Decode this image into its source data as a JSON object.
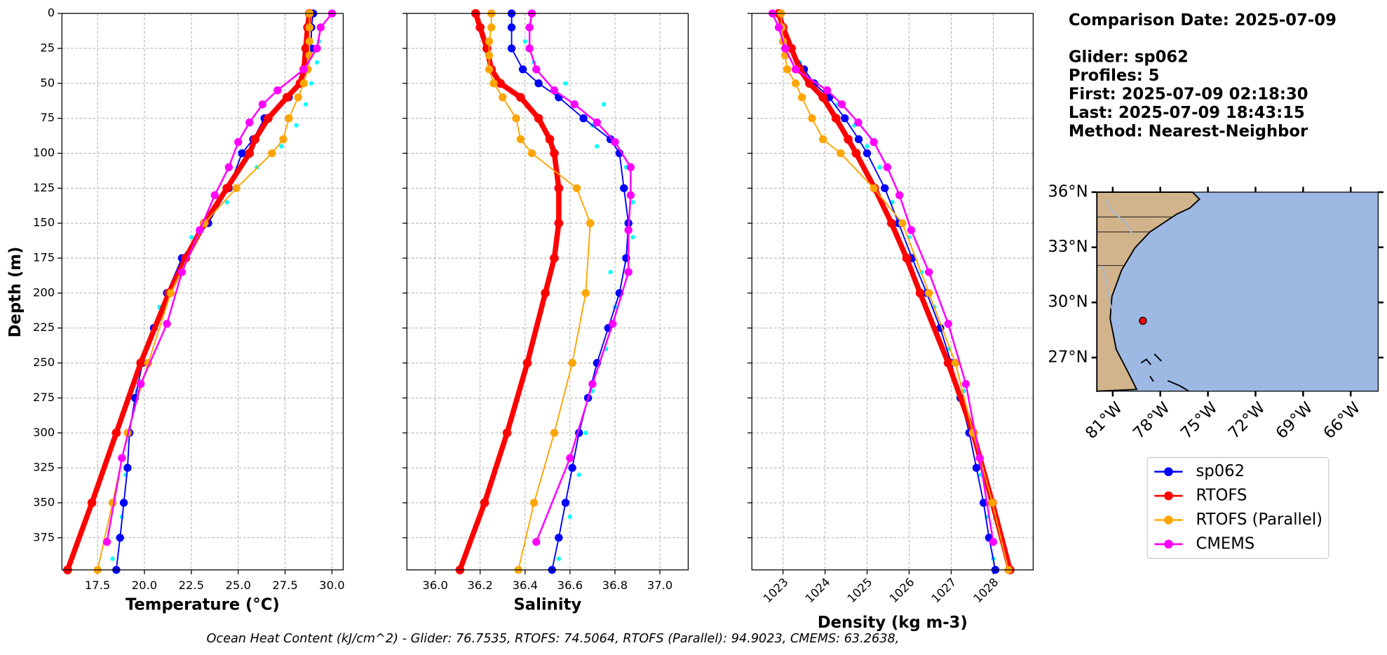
{
  "header": [
    "Comparison Date: 2025-07-09",
    "Glider: sp062",
    "Profiles: 5",
    "First: 2025-07-09 02:18:30",
    "Last: 2025-07-09 18:43:15",
    "Method: Nearest-Neighbor"
  ],
  "footer": "Ocean Heat Content (kJ/cm^2) - Glider: 76.7535,  RTOFS: 74.5064,  RTOFS (Parallel): 94.9023,  CMEMS: 63.2638,",
  "legend": [
    {
      "name": "sp062",
      "color": "#0000ff"
    },
    {
      "name": "RTOFS",
      "color": "#ff0000"
    },
    {
      "name": "RTOFS (Parallel)",
      "color": "#ffa500"
    },
    {
      "name": "CMEMS",
      "color": "#ff00ff"
    }
  ],
  "chart_data": [
    {
      "type": "line",
      "xlabel": "Temperature (°C)",
      "ylabel": "Depth (m)",
      "grid": true,
      "xlim": [
        15.6,
        30.6
      ],
      "ylim": [
        398,
        0
      ],
      "xticks": [
        17.5,
        {
          "value": 20,
          "label": "20.0"
        },
        22.5,
        {
          "value": 25,
          "label": "25.0"
        },
        27.5,
        {
          "value": 30,
          "label": "30.0"
        }
      ],
      "yticks": [
        0,
        25,
        50,
        75,
        100,
        125,
        150,
        175,
        200,
        225,
        250,
        275,
        300,
        325,
        350,
        375
      ],
      "series": [
        {
          "color": "#00ffff",
          "linewidth": 0,
          "y": [
            20,
            35,
            50,
            65,
            80,
            95,
            110,
            135,
            160,
            185,
            210,
            240,
            270,
            300,
            330,
            360,
            390
          ],
          "x": [
            29.3,
            29.2,
            28.9,
            28.6,
            28.1,
            27.3,
            26.0,
            24.4,
            22.5,
            21.8,
            20.8,
            20.1,
            19.6,
            19.3,
            19.0,
            18.8,
            18.3
          ]
        },
        {
          "color": "#0000ff",
          "linewidth": 1.5,
          "y": [
            0,
            10,
            25,
            40,
            50,
            60,
            75,
            90,
            100,
            125,
            150,
            175,
            200,
            225,
            250,
            275,
            300,
            325,
            350,
            375,
            398
          ],
          "x": [
            29.0,
            28.9,
            28.9,
            28.7,
            28.3,
            27.7,
            26.4,
            25.8,
            25.2,
            24.5,
            23.4,
            22.0,
            21.2,
            20.5,
            19.9,
            19.5,
            19.2,
            19.1,
            18.9,
            18.7,
            18.5
          ]
        },
        {
          "color": "#ff0000",
          "linewidth": 6,
          "y": [
            0,
            10,
            25,
            40,
            50,
            60,
            75,
            90,
            100,
            125,
            150,
            175,
            200,
            250,
            300,
            350,
            398
          ],
          "x": [
            28.8,
            28.7,
            28.6,
            28.5,
            28.3,
            27.6,
            26.6,
            25.9,
            25.6,
            24.4,
            23.2,
            22.2,
            21.3,
            19.8,
            18.5,
            17.2,
            15.9
          ]
        },
        {
          "color": "#ffa500",
          "linewidth": 1.5,
          "y": [
            0,
            10,
            20,
            30,
            40,
            50,
            60,
            75,
            90,
            100,
            125,
            150,
            200,
            250,
            300,
            350,
            398
          ],
          "x": [
            28.8,
            28.8,
            28.8,
            28.8,
            28.7,
            28.5,
            28.2,
            27.7,
            27.4,
            26.8,
            24.9,
            23.2,
            21.4,
            20.2,
            19.1,
            18.3,
            17.5
          ]
        },
        {
          "color": "#ff00ff",
          "linewidth": 2,
          "y": [
            0,
            10,
            25,
            40,
            55,
            65,
            78,
            92,
            110,
            130,
            155,
            185,
            222,
            265,
            318,
            378
          ],
          "x": [
            30.0,
            29.4,
            29.2,
            28.5,
            27.1,
            26.3,
            25.6,
            25.0,
            24.5,
            23.75,
            22.95,
            22.0,
            21.2,
            19.8,
            18.8,
            18.0
          ]
        }
      ]
    },
    {
      "type": "line",
      "xlabel": "Salinity",
      "grid": true,
      "xlim": [
        35.874,
        37.126
      ],
      "ylim": [
        398,
        0
      ],
      "xticks": [
        {
          "value": 36,
          "label": "36.0"
        },
        36.2,
        36.4,
        36.6,
        36.8,
        {
          "value": 37,
          "label": "37.0"
        }
      ],
      "yticks": [
        0,
        25,
        50,
        75,
        100,
        125,
        150,
        175,
        200,
        225,
        250,
        275,
        300,
        325,
        350,
        375
      ],
      "series": [
        {
          "color": "#00ffff",
          "linewidth": 0,
          "y": [
            20,
            35,
            50,
            65,
            80,
            95,
            110,
            135,
            160,
            185,
            210,
            240,
            270,
            300,
            330,
            360,
            390
          ],
          "x": [
            36.4,
            36.44,
            36.58,
            36.75,
            36.7,
            36.72,
            36.85,
            36.88,
            36.88,
            36.78,
            36.8,
            36.76,
            36.7,
            36.67,
            36.64,
            36.6,
            36.55
          ]
        },
        {
          "color": "#0000ff",
          "linewidth": 1.5,
          "y": [
            0,
            10,
            25,
            40,
            50,
            60,
            75,
            90,
            100,
            125,
            150,
            175,
            200,
            225,
            250,
            275,
            300,
            325,
            350,
            375,
            398
          ],
          "x": [
            36.34,
            36.34,
            36.34,
            36.39,
            36.46,
            36.55,
            36.66,
            36.78,
            36.82,
            36.84,
            36.86,
            36.85,
            36.82,
            36.77,
            36.72,
            36.68,
            36.64,
            36.61,
            36.58,
            36.55,
            36.52
          ]
        },
        {
          "color": "#ff0000",
          "linewidth": 6,
          "y": [
            0,
            10,
            25,
            40,
            50,
            60,
            75,
            90,
            100,
            125,
            150,
            175,
            200,
            250,
            300,
            350,
            398
          ],
          "x": [
            36.18,
            36.2,
            36.23,
            36.25,
            36.29,
            36.38,
            36.46,
            36.51,
            36.53,
            36.55,
            36.55,
            36.53,
            36.49,
            36.41,
            36.32,
            36.22,
            36.11
          ]
        },
        {
          "color": "#ffa500",
          "linewidth": 1.5,
          "y": [
            0,
            10,
            20,
            30,
            40,
            50,
            60,
            75,
            90,
            100,
            125,
            150,
            200,
            250,
            300,
            350,
            398
          ],
          "x": [
            36.25,
            36.25,
            36.24,
            36.24,
            36.24,
            36.26,
            36.3,
            36.36,
            36.38,
            36.43,
            36.63,
            36.69,
            36.67,
            36.61,
            36.53,
            36.44,
            36.37
          ]
        },
        {
          "color": "#ff00ff",
          "linewidth": 2,
          "y": [
            0,
            10,
            25,
            40,
            55,
            65,
            78,
            92,
            110,
            130,
            155,
            185,
            222,
            265,
            318,
            378
          ],
          "x": [
            36.43,
            36.42,
            36.42,
            36.45,
            36.53,
            36.62,
            36.72,
            36.8,
            36.87,
            36.87,
            36.86,
            36.86,
            36.79,
            36.7,
            36.6,
            36.45
          ]
        }
      ]
    },
    {
      "type": "line",
      "xlabel": "Density (kg m-3)",
      "grid": true,
      "xtick_rotation": 45,
      "xlim": [
        1022.26,
        1028.95
      ],
      "ylim": [
        398,
        0
      ],
      "xticks": [
        1023,
        1024,
        1025,
        1026,
        1027,
        1028
      ],
      "yticks": [
        0,
        25,
        50,
        75,
        100,
        125,
        150,
        175,
        200,
        225,
        250,
        275,
        300,
        325,
        350,
        375
      ],
      "series": [
        {
          "color": "#00ffff",
          "linewidth": 0,
          "y": [
            20,
            35,
            50,
            65,
            80,
            95,
            110,
            135,
            160,
            185,
            210,
            240,
            270,
            300,
            330,
            360,
            390
          ],
          "x": [
            1023.1,
            1023.4,
            1023.8,
            1024.3,
            1024.7,
            1025.0,
            1025.3,
            1025.6,
            1026.0,
            1026.3,
            1026.6,
            1026.95,
            1027.3,
            1027.5,
            1027.7,
            1027.85,
            1028.0
          ]
        },
        {
          "color": "#0000ff",
          "linewidth": 1.5,
          "y": [
            0,
            10,
            25,
            40,
            50,
            60,
            75,
            90,
            100,
            125,
            150,
            175,
            200,
            225,
            250,
            275,
            300,
            325,
            350,
            375,
            398
          ],
          "x": [
            1022.95,
            1023.0,
            1023.2,
            1023.5,
            1023.74,
            1024.1,
            1024.47,
            1024.8,
            1025.0,
            1025.42,
            1025.75,
            1026.07,
            1026.42,
            1026.74,
            1027.0,
            1027.22,
            1027.43,
            1027.6,
            1027.77,
            1027.9,
            1028.05
          ]
        },
        {
          "color": "#ff0000",
          "linewidth": 6,
          "y": [
            0,
            10,
            25,
            40,
            50,
            60,
            75,
            90,
            100,
            125,
            150,
            175,
            200,
            250,
            300,
            350,
            398
          ],
          "x": [
            1022.9,
            1023.0,
            1023.2,
            1023.4,
            1023.63,
            1023.95,
            1024.26,
            1024.55,
            1024.74,
            1025.18,
            1025.58,
            1025.94,
            1026.26,
            1026.93,
            1027.52,
            1027.98,
            1028.4
          ]
        },
        {
          "color": "#ffa500",
          "linewidth": 1.5,
          "y": [
            0,
            10,
            20,
            30,
            40,
            50,
            60,
            75,
            90,
            100,
            125,
            150,
            200,
            250,
            300,
            350,
            398
          ],
          "x": [
            1022.95,
            1022.97,
            1023.0,
            1023.05,
            1023.1,
            1023.3,
            1023.45,
            1023.69,
            1023.95,
            1024.37,
            1025.16,
            1025.84,
            1026.47,
            1027.1,
            1027.52,
            1027.98,
            1028.36
          ]
        },
        {
          "color": "#ff00ff",
          "linewidth": 2,
          "y": [
            0,
            10,
            25,
            40,
            55,
            65,
            78,
            92,
            110,
            130,
            155,
            185,
            222,
            265,
            318,
            378
          ],
          "x": [
            1022.75,
            1022.9,
            1023.05,
            1023.3,
            1024.05,
            1024.4,
            1024.79,
            1025.16,
            1025.48,
            1025.77,
            1026.05,
            1026.47,
            1026.93,
            1027.35,
            1027.68,
            1028.0
          ]
        }
      ]
    },
    {
      "type": "map",
      "land_color": "#d2b48c",
      "ocean_color": "#9db8e2",
      "xlim": [
        -82.0,
        -64.27
      ],
      "ylim": [
        25.17,
        36.0
      ],
      "xticks": [
        {
          "value": -81,
          "label": "81°W"
        },
        {
          "value": -78,
          "label": "78°W"
        },
        {
          "value": -75,
          "label": "75°W"
        },
        {
          "value": -72,
          "label": "72°W"
        },
        {
          "value": -69,
          "label": "69°W"
        },
        {
          "value": -66,
          "label": "66°W"
        }
      ],
      "yticks": [
        {
          "value": 36,
          "label": "36°N"
        },
        {
          "value": 33,
          "label": "33°N"
        },
        {
          "value": 30,
          "label": "30°N"
        },
        {
          "value": 27,
          "label": "27°N"
        }
      ],
      "markers": [
        {
          "lon": -79.1,
          "lat": 29.0,
          "color": "#ff0000"
        }
      ]
    }
  ]
}
